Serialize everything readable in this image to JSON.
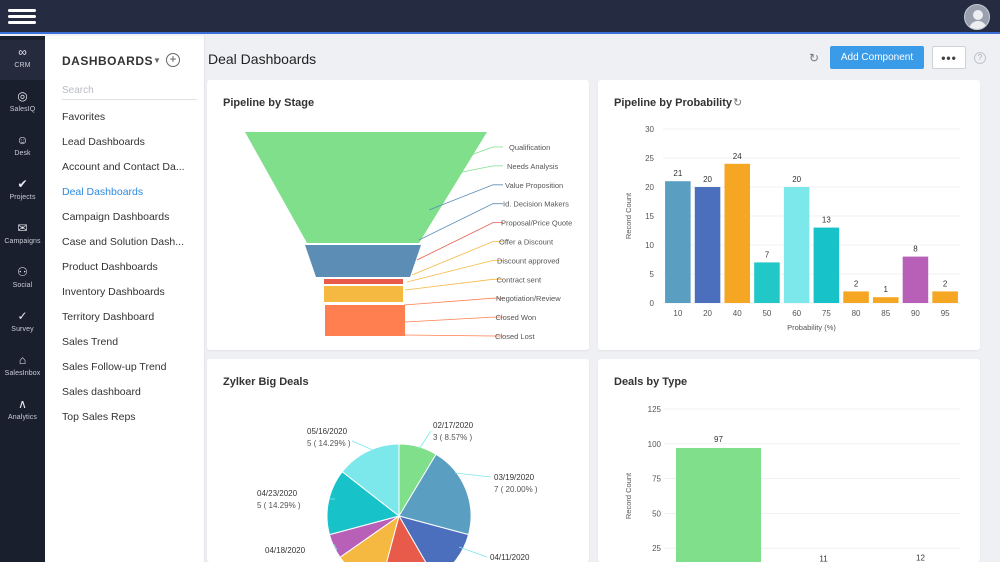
{
  "rail": {
    "items": [
      {
        "label": "CRM",
        "icon": "crm-icon",
        "glyph": "∞"
      },
      {
        "label": "SalesIQ",
        "icon": "salesiq-icon",
        "glyph": "◎"
      },
      {
        "label": "Desk",
        "icon": "desk-icon",
        "glyph": "☺"
      },
      {
        "label": "Projects",
        "icon": "projects-icon",
        "glyph": "✔"
      },
      {
        "label": "Campaigns",
        "icon": "campaigns-icon",
        "glyph": "✉"
      },
      {
        "label": "Social",
        "icon": "social-icon",
        "glyph": "⚇"
      },
      {
        "label": "Survey",
        "icon": "survey-icon",
        "glyph": "✓"
      },
      {
        "label": "SalesInbox",
        "icon": "salesinbox-icon",
        "glyph": "⌂"
      },
      {
        "label": "Analytics",
        "icon": "analytics-icon",
        "glyph": "∧"
      }
    ]
  },
  "nav": {
    "title": "DASHBOARDS",
    "add_label": "+",
    "search_placeholder": "Search",
    "items": [
      "Favorites",
      "Lead Dashboards",
      "Account and Contact Da...",
      "Deal Dashboards",
      "Campaign Dashboards",
      "Case and Solution Dash...",
      "Product Dashboards",
      "Inventory Dashboards",
      "Territory Dashboard",
      "Sales Trend",
      "Sales Follow-up Trend",
      "Sales dashboard",
      "Top Sales Reps"
    ],
    "active_index": 3
  },
  "header": {
    "title": "Deal Dashboards",
    "refresh_glyph": "↻",
    "add_component_label": "Add Component",
    "more_label": "•••",
    "help_label": "?"
  },
  "cards": {
    "pipeline_stage_title": "Pipeline by Stage",
    "pipeline_probability_title": "Pipeline by Probability",
    "big_deals_title": "Zylker Big Deals",
    "deals_type_title": "Deals by Type"
  },
  "chart_data": [
    {
      "type": "funnel",
      "title": "Pipeline by Stage",
      "stages": [
        "Qualification",
        "Needs Analysis",
        "Value Proposition",
        "Id. Decision Makers",
        "Proposal/Price Quote",
        "Offer a Discount",
        "Discount approved",
        "Contract sent",
        "Negotiation/Review",
        "Closed Won",
        "Closed Lost"
      ],
      "colors": [
        "#7fdf8a",
        "#5b8db5",
        "#e85b4a",
        "#f5b942",
        "#ff7f50"
      ]
    },
    {
      "type": "bar",
      "title": "Pipeline by Probability",
      "xlabel": "Probability (%)",
      "ylabel": "Record Count",
      "ylim": [
        0,
        30
      ],
      "yticks": [
        0,
        5,
        10,
        15,
        20,
        25,
        30
      ],
      "categories": [
        "10",
        "20",
        "40",
        "50",
        "60",
        "75",
        "80",
        "85",
        "90",
        "95"
      ],
      "values": [
        21,
        20,
        24,
        7,
        20,
        13,
        2,
        1,
        8,
        2
      ],
      "colors": [
        "#5a9ec2",
        "#4b6fbd",
        "#f5a623",
        "#22c7c7",
        "#7de8ec",
        "#17c3c9",
        "#f5a623",
        "#f5a623",
        "#b85fb8",
        "#f5a623"
      ]
    },
    {
      "type": "pie",
      "title": "Zylker Big Deals",
      "labels": [
        {
          "date": "02/17/2020",
          "value": "3 ( 8.57% )"
        },
        {
          "date": "03/19/2020",
          "value": "7 ( 20.00% )"
        },
        {
          "date": "04/11/2020",
          "value": ""
        },
        {
          "date": "04/18/2020",
          "value": ""
        },
        {
          "date": "04/23/2020",
          "value": "5 ( 14.29% )"
        },
        {
          "date": "05/16/2020",
          "value": "5 ( 14.29% )"
        }
      ]
    },
    {
      "type": "bar",
      "title": "Deals by Type",
      "ylabel": "Record Count",
      "ylim": [
        0,
        125
      ],
      "yticks": [
        25,
        50,
        75,
        100,
        125
      ],
      "values": [
        97,
        11,
        12
      ],
      "colors": [
        "#7fdf8a",
        "#7fdf8a",
        "#7fdf8a"
      ]
    }
  ]
}
